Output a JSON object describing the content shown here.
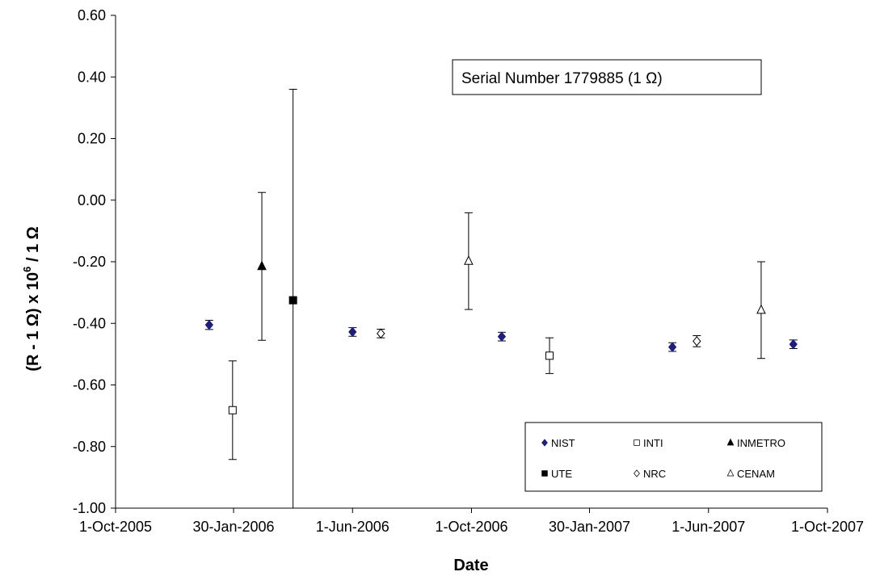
{
  "chart_data": {
    "type": "scatter",
    "title": "",
    "annotation": "Serial Number 1779885 (1 Ω)",
    "xlabel": "Date",
    "ylabel_main": "(R - 1 Ω) x 10",
    "ylabel_sup": "6",
    "ylabel_tail": " / 1 Ω",
    "xlim": [
      "2005-10-01",
      "2007-10-01"
    ],
    "x_ticks": [
      "1-Oct-2005",
      "30-Jan-2006",
      "1-Jun-2006",
      "1-Oct-2006",
      "30-Jan-2007",
      "1-Jun-2007",
      "1-Oct-2007"
    ],
    "x_tick_dates": [
      "2005-10-01",
      "2006-01-30",
      "2006-06-01",
      "2006-10-01",
      "2007-01-30",
      "2007-06-01",
      "2007-10-01"
    ],
    "ylim": [
      -1.0,
      0.6
    ],
    "y_ticks": [
      "0.60",
      "0.40",
      "0.20",
      "0.00",
      "-0.20",
      "-0.40",
      "-0.60",
      "-0.80",
      "-1.00"
    ],
    "y_tick_values": [
      0.6,
      0.4,
      0.2,
      0.0,
      -0.2,
      -0.4,
      -0.6,
      -0.8,
      -1.0
    ],
    "grid": false,
    "legend_position": "bottom-right",
    "series": [
      {
        "name": "NIST",
        "marker": "diamond",
        "fill": "#1f1f7a",
        "stroke": "#1f1f7a",
        "points": [
          {
            "x": "2006-01-05",
            "y": -0.405,
            "err": 0.015
          },
          {
            "x": "2006-06-01",
            "y": -0.428,
            "err": 0.014
          },
          {
            "x": "2006-11-01",
            "y": -0.443,
            "err": 0.014
          },
          {
            "x": "2007-04-25",
            "y": -0.477,
            "err": 0.014
          },
          {
            "x": "2007-08-27",
            "y": -0.468,
            "err": 0.014
          }
        ]
      },
      {
        "name": "INTI",
        "marker": "square",
        "fill": "#ffffff",
        "stroke": "#000000",
        "points": [
          {
            "x": "2006-01-29",
            "y": -0.682,
            "err": 0.16
          },
          {
            "x": "2006-12-20",
            "y": -0.505,
            "err": 0.058
          }
        ]
      },
      {
        "name": "INMETRO",
        "marker": "triangle",
        "fill": "#000000",
        "stroke": "#000000",
        "points": [
          {
            "x": "2006-02-28",
            "y": -0.215,
            "err": 0.24
          }
        ]
      },
      {
        "name": "UTE",
        "marker": "square",
        "fill": "#000000",
        "stroke": "#000000",
        "points": [
          {
            "x": "2006-04-01",
            "y": -0.325,
            "err": 0.685
          }
        ]
      },
      {
        "name": "NRC",
        "marker": "diamond",
        "fill": "#ffffff",
        "stroke": "#000000",
        "points": [
          {
            "x": "2006-06-30",
            "y": -0.433,
            "err": 0.014
          },
          {
            "x": "2007-05-20",
            "y": -0.458,
            "err": 0.018
          }
        ]
      },
      {
        "name": "CENAM",
        "marker": "triangle",
        "fill": "#ffffff",
        "stroke": "#000000",
        "points": [
          {
            "x": "2006-09-28",
            "y": -0.198,
            "err": 0.157
          },
          {
            "x": "2007-07-25",
            "y": -0.357,
            "err": 0.157
          }
        ]
      }
    ],
    "legend_order": [
      "NIST",
      "INTI",
      "INMETRO",
      "UTE",
      "NRC",
      "CENAM"
    ]
  }
}
